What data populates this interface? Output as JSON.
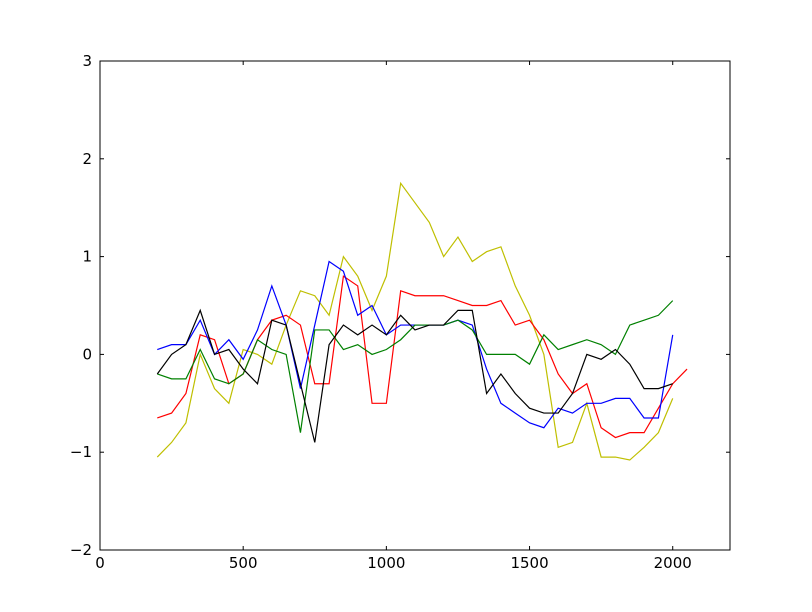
{
  "chart_data": {
    "type": "line",
    "x": [
      200,
      250,
      300,
      350,
      400,
      450,
      500,
      550,
      600,
      650,
      700,
      750,
      800,
      850,
      900,
      950,
      1000,
      1050,
      1100,
      1150,
      1200,
      1250,
      1300,
      1350,
      1400,
      1450,
      1500,
      1550,
      1600,
      1650,
      1700,
      1750,
      1800,
      1850,
      1900,
      1950,
      2000,
      2050
    ],
    "series": [
      {
        "color": "#bfbf00",
        "values": [
          -1.05,
          -0.9,
          -0.7,
          0.0,
          -0.35,
          -0.5,
          0.05,
          0.0,
          -0.1,
          0.3,
          0.65,
          0.6,
          0.4,
          1.0,
          0.8,
          0.45,
          0.8,
          1.75,
          1.55,
          1.35,
          1.0,
          1.2,
          0.95,
          1.05,
          1.1,
          0.7,
          0.4,
          0.0,
          -0.95,
          -0.9,
          -0.5,
          -1.05,
          -1.05,
          -1.08,
          -0.95,
          -0.8,
          -0.45,
          null
        ]
      },
      {
        "color": "#ff0000",
        "values": [
          -0.65,
          -0.6,
          -0.4,
          0.2,
          0.15,
          -0.3,
          -0.2,
          0.15,
          0.35,
          0.4,
          0.3,
          -0.3,
          -0.3,
          0.8,
          0.7,
          -0.5,
          -0.5,
          0.65,
          0.6,
          0.6,
          0.6,
          0.55,
          0.5,
          0.5,
          0.55,
          0.3,
          0.35,
          0.15,
          -0.2,
          -0.4,
          -0.3,
          -0.75,
          -0.85,
          -0.8,
          -0.8,
          -0.55,
          -0.3,
          -0.15
        ]
      },
      {
        "color": "#0000ff",
        "values": [
          0.05,
          0.1,
          0.1,
          0.35,
          0.0,
          0.15,
          -0.05,
          0.25,
          0.7,
          0.3,
          -0.35,
          0.3,
          0.95,
          0.85,
          0.4,
          0.5,
          0.2,
          0.3,
          0.3,
          0.3,
          0.3,
          0.35,
          0.3,
          -0.15,
          -0.5,
          -0.6,
          -0.7,
          -0.75,
          -0.55,
          -0.6,
          -0.5,
          -0.5,
          -0.45,
          -0.45,
          -0.65,
          -0.65,
          0.2,
          null
        ]
      },
      {
        "color": "#008000",
        "values": [
          -0.2,
          -0.25,
          -0.25,
          0.05,
          -0.25,
          -0.3,
          -0.2,
          0.15,
          0.05,
          0.0,
          -0.8,
          0.25,
          0.25,
          0.05,
          0.1,
          0.0,
          0.05,
          0.15,
          0.3,
          0.3,
          0.3,
          0.35,
          0.25,
          0.0,
          0.0,
          0.0,
          -0.1,
          0.2,
          0.05,
          0.1,
          0.15,
          0.1,
          0.0,
          0.3,
          0.35,
          0.4,
          0.55,
          null
        ]
      },
      {
        "color": "#000000",
        "values": [
          -0.2,
          0.0,
          0.1,
          0.45,
          0.0,
          0.05,
          -0.15,
          -0.3,
          0.35,
          0.3,
          -0.3,
          -0.9,
          0.1,
          0.3,
          0.2,
          0.3,
          0.2,
          0.4,
          0.25,
          0.3,
          0.3,
          0.45,
          0.45,
          -0.4,
          -0.2,
          -0.4,
          -0.55,
          -0.6,
          -0.6,
          -0.4,
          0.0,
          -0.05,
          0.05,
          -0.1,
          -0.35,
          -0.35,
          -0.3,
          null
        ]
      }
    ],
    "xlim": [
      0,
      2200
    ],
    "xticks": [
      0,
      500,
      1000,
      1500,
      2000
    ],
    "ylim": [
      -2,
      3
    ],
    "yticks": [
      {
        "value": -2,
        "label": "−2"
      },
      {
        "value": -1,
        "label": "−1"
      },
      0,
      1,
      2,
      3
    ]
  }
}
